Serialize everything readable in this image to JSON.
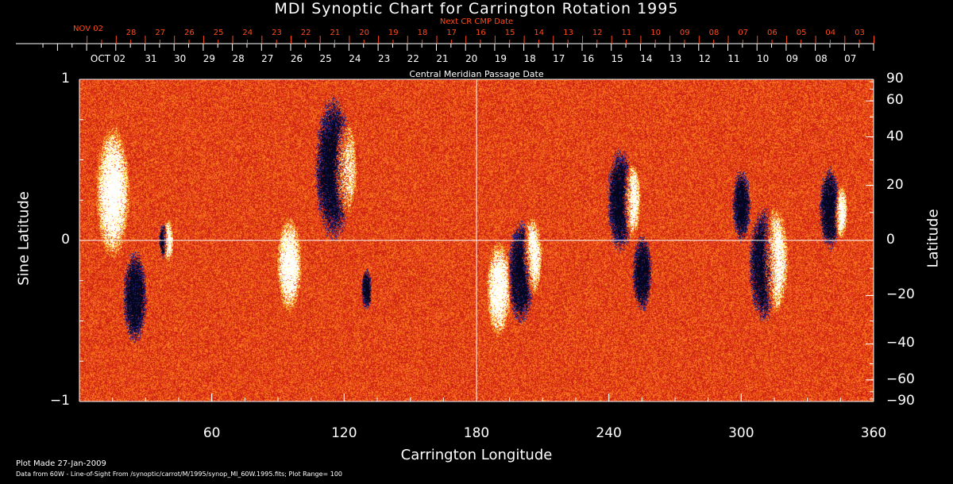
{
  "chart_data": {
    "type": "heatmap",
    "title": "MDI Synoptic Chart for Carrington Rotation 1995",
    "xlabel": "Carrington Longitude",
    "ylabel": "Sine Latitude",
    "y2label": "Latitude",
    "xlim": [
      0,
      360
    ],
    "ylim": [
      -1,
      1
    ],
    "x_ticks": [
      "60",
      "120",
      "180",
      "240",
      "300",
      "360"
    ],
    "x_tick_values": [
      60,
      120,
      180,
      240,
      300,
      360
    ],
    "y_ticks": [
      "1",
      "0",
      "−1"
    ],
    "y_tick_values": [
      1,
      0,
      -1
    ],
    "y2_ticks": [
      "90",
      "60",
      "40",
      "20",
      "0",
      "−20",
      "−40",
      "−60",
      "−90"
    ],
    "y2_tick_values": [
      90,
      60,
      40,
      20,
      0,
      -20,
      -40,
      -60,
      -90
    ],
    "top_axis_label": "Central Meridian Passage Date",
    "top_axis_dates": [
      "OCT 02",
      "31",
      "30",
      "29",
      "28",
      "27",
      "26",
      "25",
      "24",
      "23",
      "22",
      "21",
      "20",
      "19",
      "18",
      "17",
      "16",
      "15",
      "14",
      "13",
      "12",
      "11",
      "10",
      "09",
      "08",
      "07"
    ],
    "next_axis_label": "Next CR CMP Date",
    "next_axis_dates": [
      "NOV 02",
      "28",
      "27",
      "26",
      "25",
      "24",
      "23",
      "22",
      "21",
      "20",
      "19",
      "18",
      "17",
      "16",
      "15",
      "14",
      "13",
      "12",
      "11",
      "10",
      "09",
      "08",
      "07",
      "06",
      "05",
      "04",
      "03"
    ],
    "plot_range": 100,
    "colors": {
      "background": "#e8501a",
      "positive": "#ffffff",
      "negative": "#101040",
      "next_axis": "#ff4a1a"
    }
  },
  "footer": {
    "plot_made": "Plot Made 27-Jan-2009",
    "data_source": "Data from 60W - Line-of-Sight From /synoptic/carrot/M/1995/synop_Ml_60W.1995.fits; Plot Range=  100"
  }
}
